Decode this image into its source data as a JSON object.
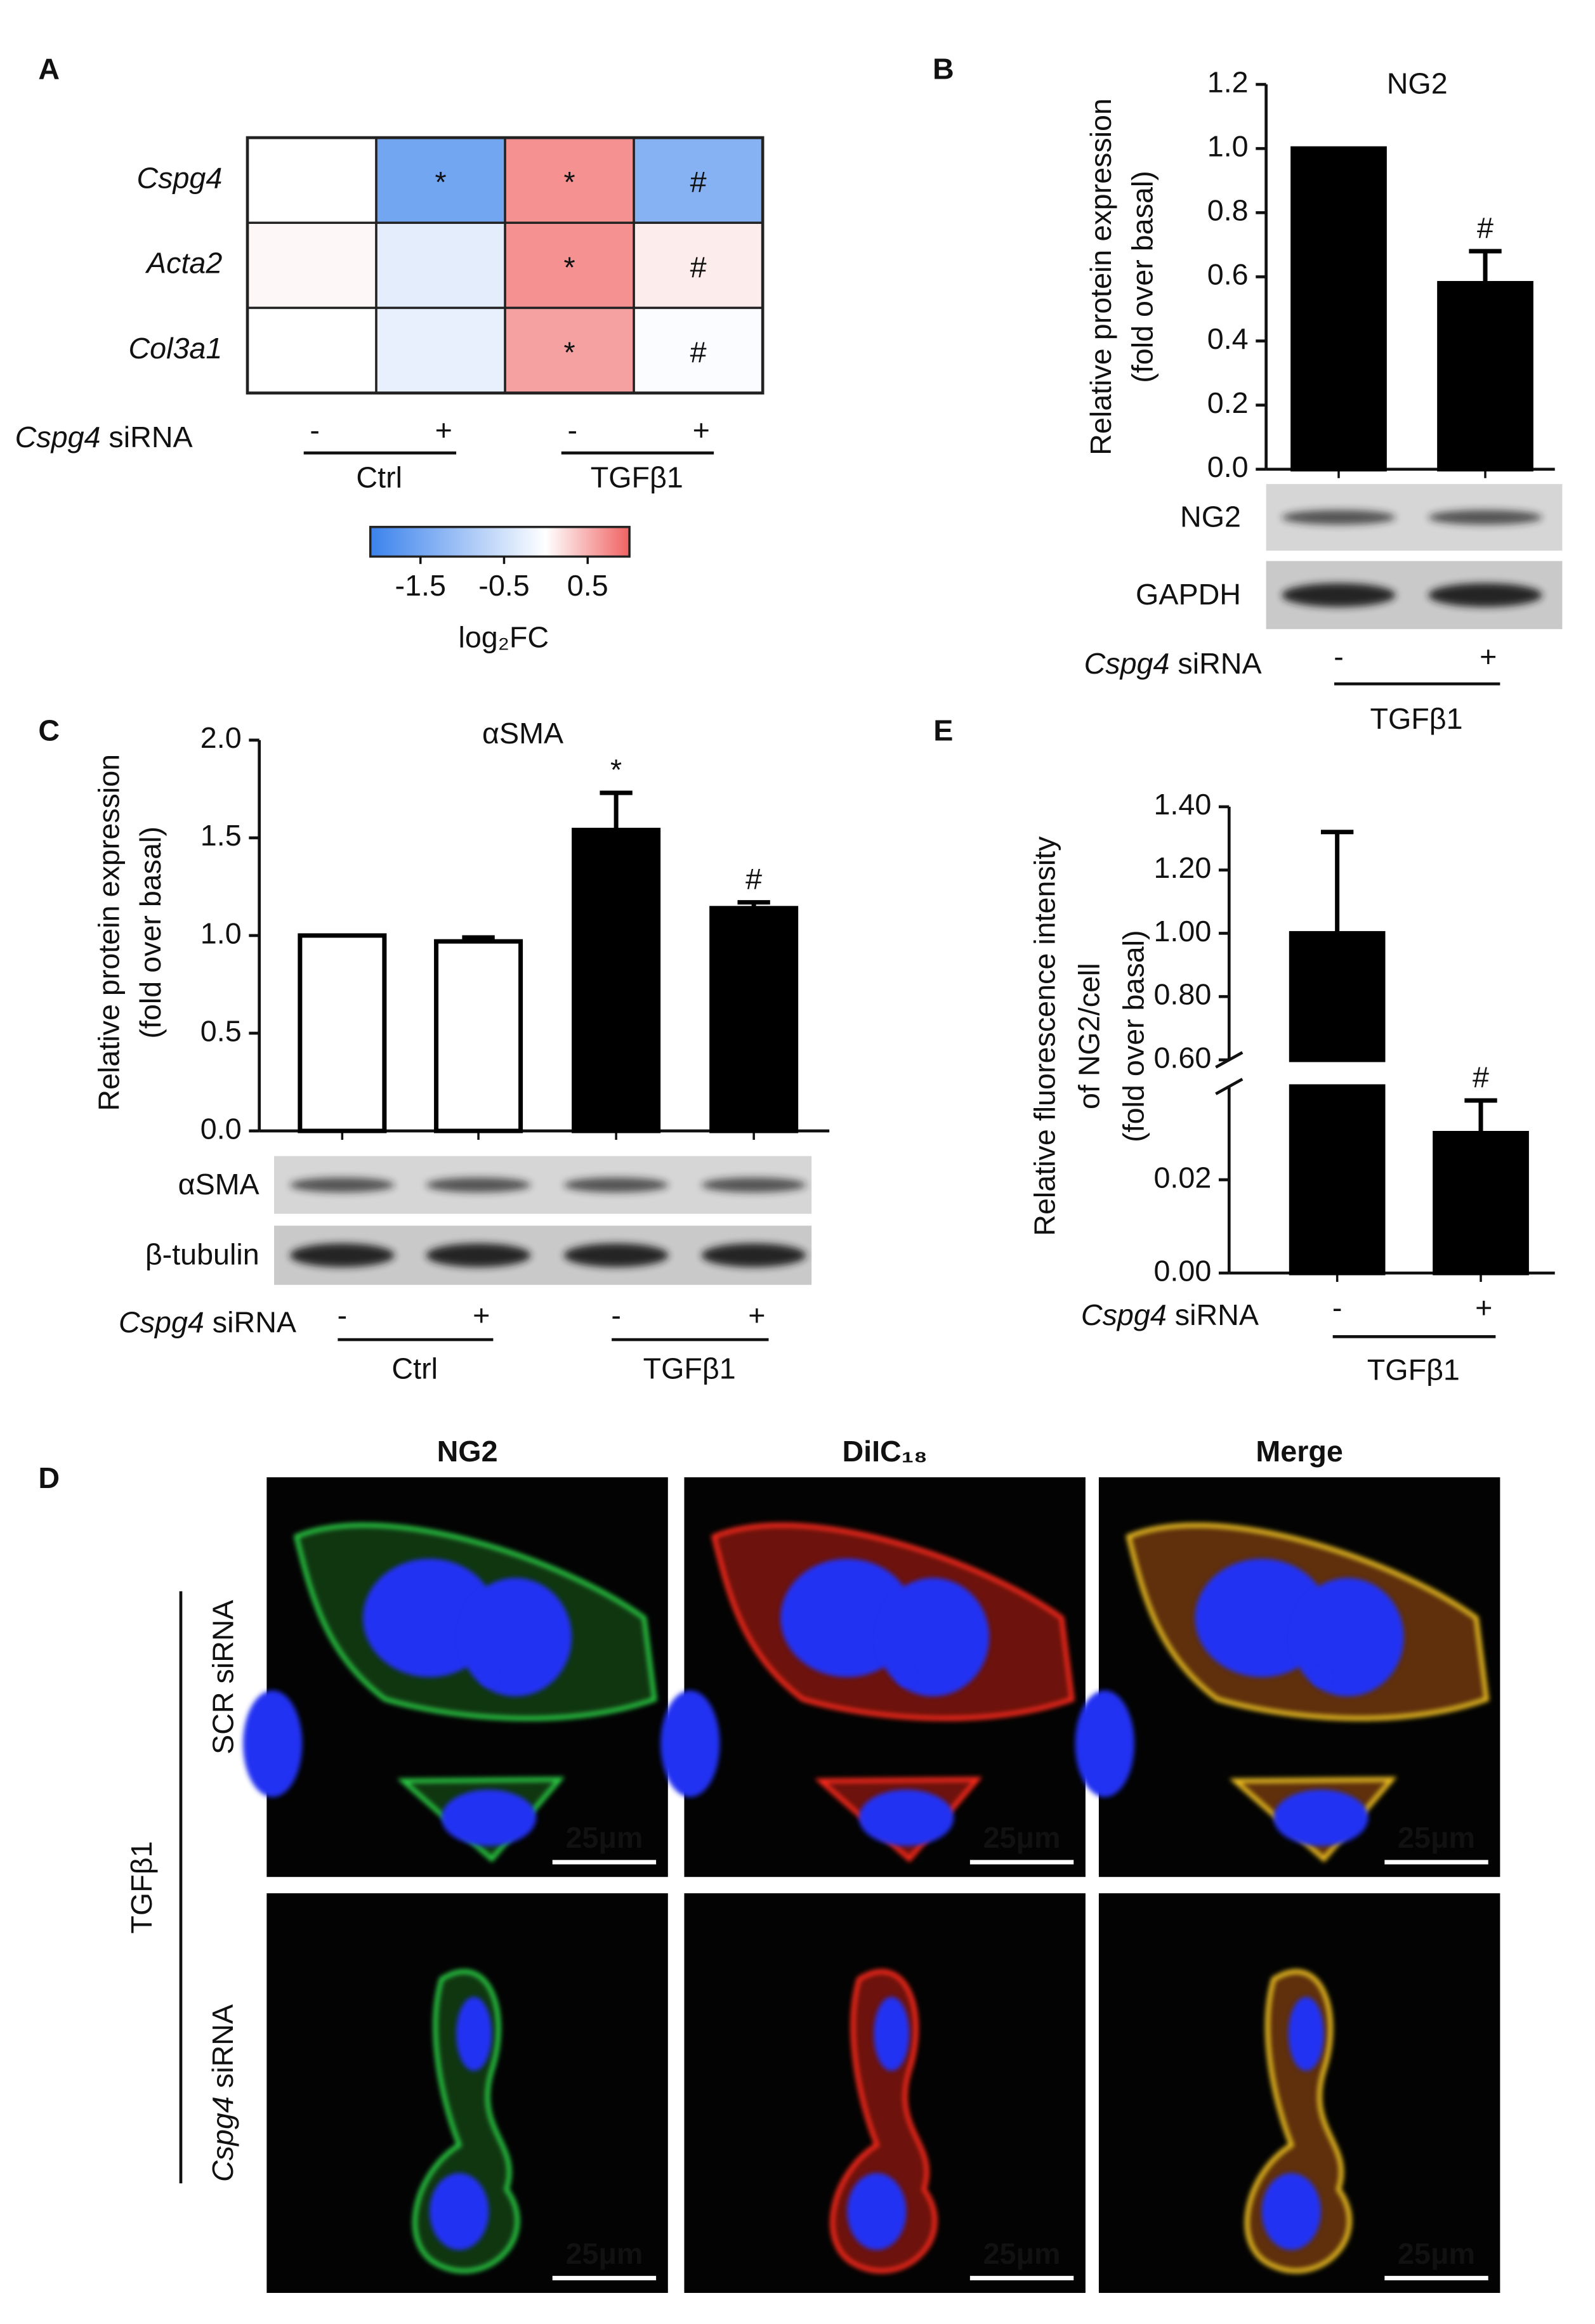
{
  "chart_data": [
    {
      "type": "heatmap",
      "panel": "A",
      "rows": [
        "Cspg4",
        "Acta2",
        "Col3a1"
      ],
      "values": [
        [
          0,
          -1.5,
          0.7,
          -1.3
        ],
        [
          0.05,
          -0.3,
          0.7,
          0.12
        ],
        [
          0,
          -0.25,
          0.6,
          -0.05
        ]
      ],
      "annotations": [
        [
          null,
          "*",
          "*",
          "#"
        ],
        [
          null,
          null,
          "*",
          "#"
        ],
        [
          null,
          null,
          "*",
          "#"
        ]
      ],
      "factor_label": "Cspg4 siRNA",
      "signs": [
        "-",
        "+",
        "-",
        "+"
      ],
      "groups": [
        "Ctrl",
        "TGFβ1"
      ],
      "colorbar": {
        "clim": [
          -2.1,
          1.0
        ],
        "ticks": [
          -1.5,
          -0.5,
          0.5
        ],
        "label": "log₂FC",
        "colors": [
          "#3b82ec",
          "#ffffff",
          "#f06262"
        ]
      }
    },
    {
      "type": "bar",
      "panel": "B",
      "title": "NG2",
      "ylabel": [
        "Relative protein expression",
        "(fold over basal)"
      ],
      "categories": [
        "-",
        "+"
      ],
      "values": [
        1.0,
        0.58
      ],
      "errors": [
        null,
        0.1
      ],
      "annotations": [
        null,
        "#"
      ],
      "bar_colors": [
        "#000000",
        "#000000"
      ],
      "ylim": [
        0,
        1.2
      ],
      "yticks": [
        {
          "value": 0,
          "label": "0.0"
        },
        0.2,
        0.4,
        0.6,
        0.8,
        {
          "value": 1,
          "label": "1.0"
        },
        1.2
      ],
      "factor_label": "Cspg4 siRNA",
      "groups": [
        "TGFβ1"
      ],
      "blots": [
        "NG2",
        "GAPDH"
      ]
    },
    {
      "type": "bar",
      "panel": "C",
      "title": "αSMA",
      "ylabel": [
        "Relative protein expression",
        "(fold over basal)"
      ],
      "categories": [
        "-",
        "+",
        "-",
        "+"
      ],
      "values": [
        1.0,
        0.97,
        1.54,
        1.14
      ],
      "errors": [
        null,
        0.02,
        0.19,
        0.03
      ],
      "annotations": [
        null,
        null,
        "*",
        "#"
      ],
      "bar_colors": [
        "#ffffff",
        "#ffffff",
        "#000000",
        "#000000"
      ],
      "ylim": [
        0,
        2
      ],
      "yticks": [
        {
          "value": 0,
          "label": "0.0"
        },
        0.5,
        {
          "value": 1,
          "label": "1.0"
        },
        1.5,
        {
          "value": 2,
          "label": "2.0"
        }
      ],
      "factor_label": "Cspg4 siRNA",
      "groups": [
        "Ctrl",
        "TGFβ1"
      ],
      "blots": [
        "αSMA",
        "β-tubulin"
      ]
    },
    {
      "type": "broken_bar",
      "panel": "E",
      "ylabel": [
        "Relative fluorescence intensity",
        "of NG2/cell",
        "(fold over basal)"
      ],
      "categories": [
        "-",
        "+"
      ],
      "values": [
        1.0,
        0.03
      ],
      "errors": [
        0.32,
        0.007
      ],
      "annotations": [
        null,
        "#"
      ],
      "bar_colors": [
        "#000000",
        "#000000"
      ],
      "y_segments": [
        {
          "ylim": [
            0,
            0.04
          ],
          "yticks": [
            {
              "value": 0,
              "label": "0.00"
            },
            0.02
          ]
        },
        {
          "ylim": [
            0.6,
            1.4
          ],
          "yticks": [
            {
              "value": 0.6,
              "label": "0.60"
            },
            {
              "value": 0.8,
              "label": "0.80"
            },
            {
              "value": 1,
              "label": "1.00"
            },
            {
              "value": 1.2,
              "label": "1.20"
            },
            {
              "value": 1.4,
              "label": "1.40"
            }
          ]
        }
      ],
      "factor_label": "Cspg4 siRNA",
      "groups": [
        "TGFβ1"
      ]
    }
  ],
  "micrographs": {
    "panel": "D",
    "columns": [
      "NG2",
      "DiIC₁₈",
      "Merge"
    ],
    "column_colors": [
      "#1aaf4b",
      "#e8202a",
      "#111111"
    ],
    "rows": [
      "SCR siRNA",
      "Cspg4 siRNA"
    ],
    "group": "TGFβ1",
    "scale_bar": "25μm"
  }
}
